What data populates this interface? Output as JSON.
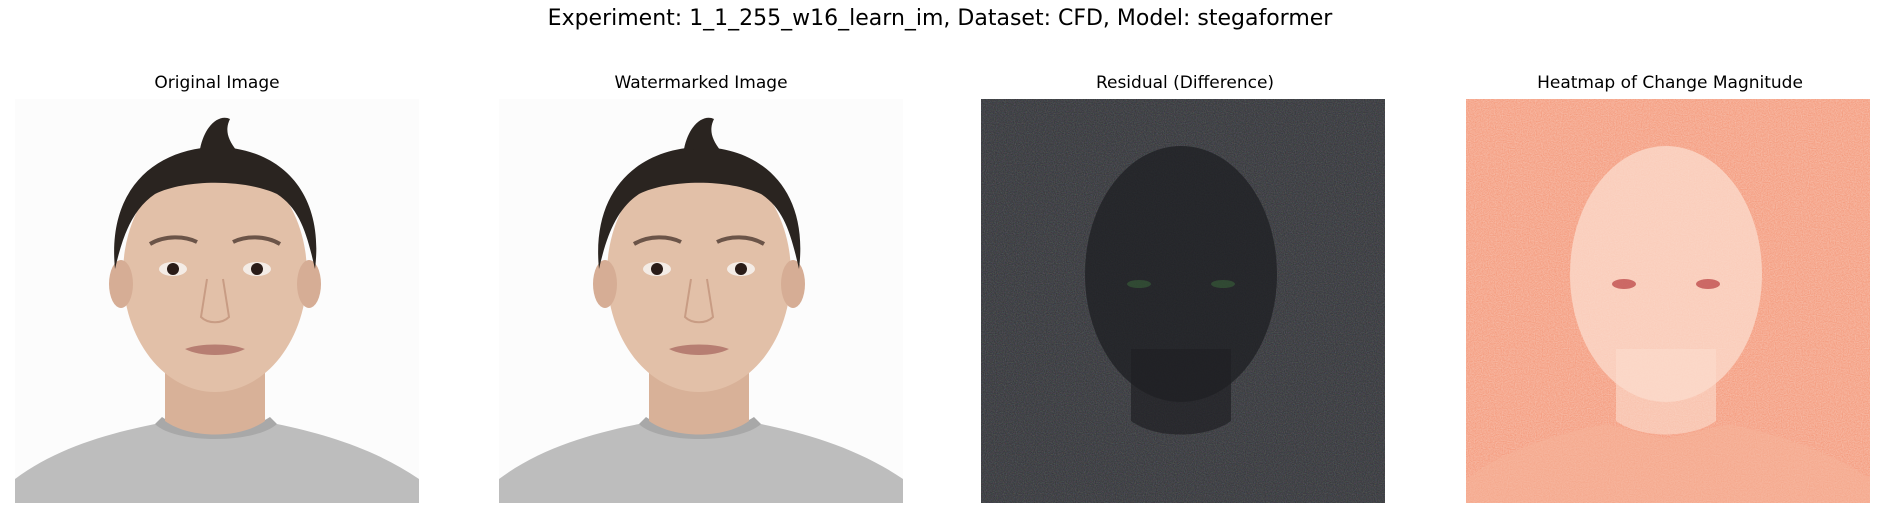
{
  "figure": {
    "title": "Experiment: 1_1_255_w16_learn_im, Dataset: CFD, Model: stegaformer"
  },
  "panels": [
    {
      "title": "Original Image",
      "image": "face-photo"
    },
    {
      "title": "Watermarked Image",
      "image": "face-photo"
    },
    {
      "title": "Residual (Difference)",
      "image": "residual-noise"
    },
    {
      "title": "Heatmap of Change Magnitude",
      "image": "heatmap"
    }
  ],
  "colors": {
    "background": "#ffffff",
    "residual_bg": "#303236",
    "heatmap_bg": "#f49a7c",
    "heatmap_face": "#fbdccd",
    "heatmap_dark": "#a5141b"
  }
}
